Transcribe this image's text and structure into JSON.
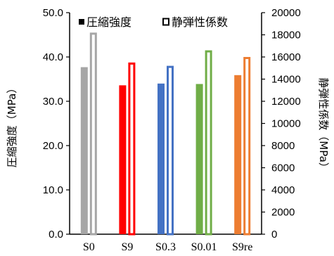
{
  "chart_data": {
    "type": "bar",
    "categories": [
      "S0",
      "S9",
      "S0.3",
      "S0.01",
      "S9re"
    ],
    "colors": [
      "#a6a6a6",
      "#ff0000",
      "#4472c4",
      "#70ad47",
      "#ed7d31"
    ],
    "series": [
      {
        "name": "圧縮強度",
        "axis": "left",
        "style": "filled",
        "values": [
          37.7,
          33.6,
          34.0,
          33.9,
          35.9
        ]
      },
      {
        "name": "静弾性係数",
        "axis": "right",
        "style": "outline",
        "values": [
          18200,
          15500,
          15200,
          16600,
          16000
        ]
      }
    ],
    "ylabel": "圧縮強度（MPa）",
    "y2label": "静弾性係数（MPa）",
    "ylim": [
      0,
      50
    ],
    "y2lim": [
      0,
      20000
    ],
    "yticks": [
      "0.0",
      "10.0",
      "20.0",
      "30.0",
      "40.0",
      "50.0"
    ],
    "y2ticks": [
      "0",
      "2000",
      "4000",
      "6000",
      "8000",
      "10000",
      "12000",
      "14000",
      "16000",
      "18000",
      "20000"
    ],
    "legend": {
      "position": "top"
    },
    "grid": false
  }
}
